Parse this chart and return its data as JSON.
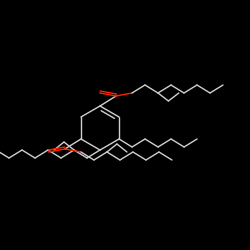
{
  "background_color": "#000000",
  "bond_color": "#d0d0d0",
  "oxygen_color": "#ff2200",
  "line_width": 1.0,
  "fig_size": [
    2.5,
    2.5
  ],
  "dpi": 100
}
